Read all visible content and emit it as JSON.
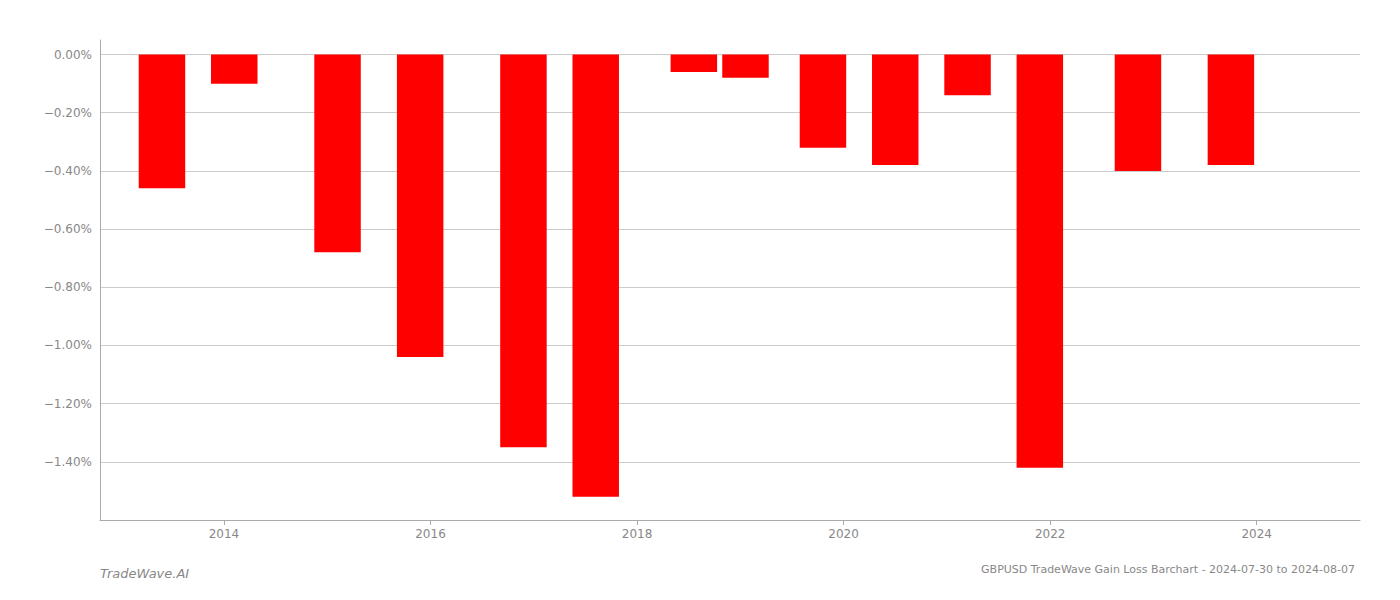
{
  "chart_data": {
    "type": "bar",
    "title": "GBPUSD TradeWave Gain Loss Barchart - 2024-07-30 to 2024-08-07",
    "annotations": [
      "TradeWave.AI"
    ],
    "x": [
      2013.4,
      2014.1,
      2015.1,
      2015.9,
      2016.9,
      2017.6,
      2018.55,
      2019.05,
      2019.8,
      2020.5,
      2021.2,
      2021.9,
      2022.85,
      2023.75
    ],
    "values": [
      -0.46,
      -0.1,
      -0.68,
      -1.04,
      -1.35,
      -1.52,
      -0.06,
      -0.08,
      -0.32,
      -0.38,
      -0.14,
      -1.42,
      -0.4,
      -0.38
    ],
    "color": "#ff0000",
    "xlim": [
      2012.8,
      2025.0
    ],
    "xticks": [
      2014,
      2016,
      2018,
      2020,
      2022,
      2024
    ],
    "ylim": [
      -1.6,
      0.05
    ],
    "yticks": [
      {
        "value": 0.0,
        "label": "0.00%"
      },
      {
        "value": -0.2,
        "label": "−0.20%"
      },
      {
        "value": -0.4,
        "label": "−0.40%"
      },
      {
        "value": -0.6,
        "label": "−0.60%"
      },
      {
        "value": -0.8,
        "label": "−0.80%"
      },
      {
        "value": -1.0,
        "label": "−1.00%"
      },
      {
        "value": -1.2,
        "label": "−1.20%"
      },
      {
        "value": -1.4,
        "label": "−1.40%"
      }
    ],
    "grid": true
  }
}
